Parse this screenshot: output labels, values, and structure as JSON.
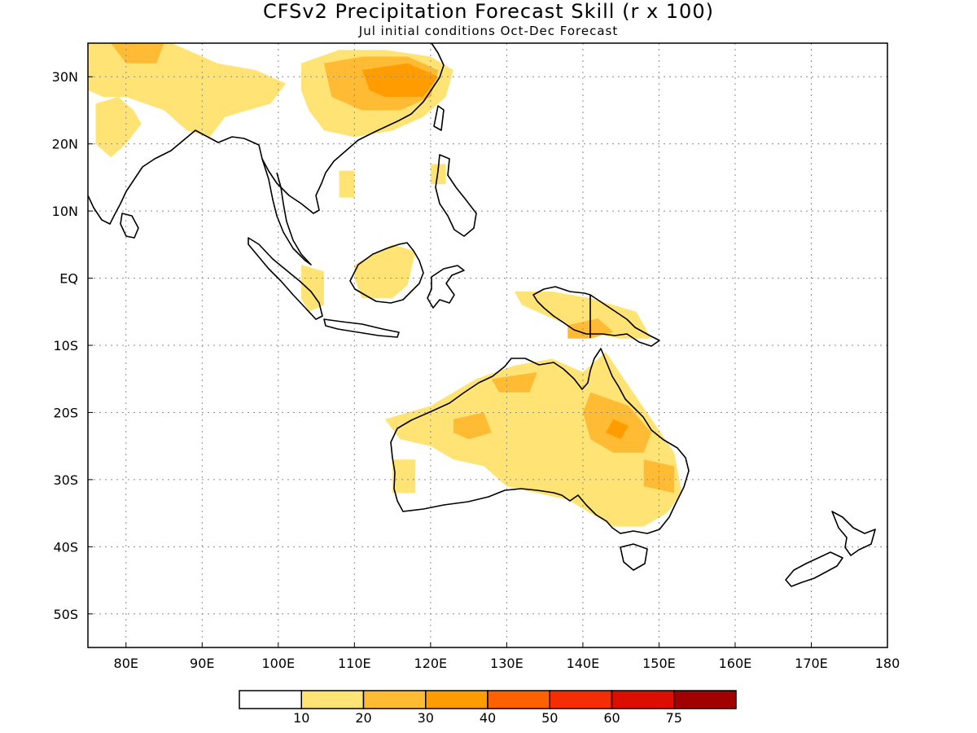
{
  "title": "CFSv2 Precipitation Forecast Skill (r x 100)",
  "subtitle": "Jul initial conditions  Oct-Dec Forecast",
  "map": {
    "lon_range": [
      75,
      180
    ],
    "lat_range": [
      -55,
      35
    ],
    "grid_visible": true
  },
  "axes": {
    "x_ticks": [
      {
        "value": 80,
        "label": "80E"
      },
      {
        "value": 90,
        "label": "90E"
      },
      {
        "value": 100,
        "label": "100E"
      },
      {
        "value": 110,
        "label": "110E"
      },
      {
        "value": 120,
        "label": "120E"
      },
      {
        "value": 130,
        "label": "130E"
      },
      {
        "value": 140,
        "label": "140E"
      },
      {
        "value": 150,
        "label": "150E"
      },
      {
        "value": 160,
        "label": "160E"
      },
      {
        "value": 170,
        "label": "170E"
      },
      {
        "value": 180,
        "label": "180"
      }
    ],
    "y_ticks": [
      {
        "value": 30,
        "label": "30N"
      },
      {
        "value": 20,
        "label": "20N"
      },
      {
        "value": 10,
        "label": "10N"
      },
      {
        "value": 0,
        "label": "EQ"
      },
      {
        "value": -10,
        "label": "10S"
      },
      {
        "value": -20,
        "label": "20S"
      },
      {
        "value": -30,
        "label": "30S"
      },
      {
        "value": -40,
        "label": "40S"
      },
      {
        "value": -50,
        "label": "50S"
      }
    ]
  },
  "colorbar": {
    "colors": [
      "#ffffff",
      "#ffe375",
      "#ffbb33",
      "#ff9d00",
      "#ff6000",
      "#f52d05",
      "#dc0e00",
      "#a00000"
    ],
    "labels": [
      "10",
      "20",
      "30",
      "40",
      "50",
      "60",
      "75"
    ]
  },
  "chart_data": {
    "type": "heatmap",
    "title": "CFSv2 Precipitation Forecast Skill (r x 100)",
    "subtitle": "Jul initial conditions  Oct-Dec Forecast",
    "xlabel": "",
    "ylabel": "",
    "xlim": [
      75,
      180
    ],
    "ylim": [
      -55,
      35
    ],
    "levels": [
      10,
      20,
      30,
      40,
      50,
      60,
      75
    ],
    "regions": [
      {
        "level": 1,
        "points": [
          [
            75,
            35
          ],
          [
            86,
            35
          ],
          [
            92,
            32
          ],
          [
            97,
            31
          ],
          [
            101,
            29
          ],
          [
            99,
            26
          ],
          [
            96,
            25
          ],
          [
            93,
            24
          ],
          [
            91,
            21
          ],
          [
            88,
            22
          ],
          [
            85,
            25
          ],
          [
            80,
            27
          ],
          [
            77,
            27
          ],
          [
            75,
            28
          ]
        ]
      },
      {
        "level": 1,
        "points": [
          [
            76,
            26
          ],
          [
            79,
            27
          ],
          [
            81,
            25
          ],
          [
            82,
            23
          ],
          [
            80,
            20
          ],
          [
            78,
            18
          ],
          [
            76,
            20
          ]
        ]
      },
      {
        "level": 1,
        "points": [
          [
            103,
            32
          ],
          [
            108,
            34
          ],
          [
            114,
            34
          ],
          [
            120,
            33
          ],
          [
            123,
            31
          ],
          [
            122,
            27
          ],
          [
            119,
            24
          ],
          [
            115,
            22
          ],
          [
            110,
            21
          ],
          [
            106,
            22
          ],
          [
            104,
            25
          ],
          [
            103,
            28
          ]
        ]
      },
      {
        "level": 2,
        "points": [
          [
            106,
            32
          ],
          [
            111,
            33
          ],
          [
            117,
            33
          ],
          [
            121,
            31
          ],
          [
            120,
            27
          ],
          [
            116,
            25
          ],
          [
            111,
            25
          ],
          [
            107,
            27
          ]
        ]
      },
      {
        "level": 3,
        "points": [
          [
            111,
            31
          ],
          [
            117,
            32
          ],
          [
            121,
            30
          ],
          [
            119,
            27
          ],
          [
            114,
            27
          ],
          [
            112,
            28
          ]
        ]
      },
      {
        "level": 2,
        "points": [
          [
            78,
            35
          ],
          [
            85,
            35
          ],
          [
            84,
            32
          ],
          [
            80,
            32
          ]
        ]
      },
      {
        "level": 1,
        "points": [
          [
            108,
            16
          ],
          [
            110,
            16
          ],
          [
            110,
            12
          ],
          [
            108,
            12
          ]
        ]
      },
      {
        "level": 1,
        "points": [
          [
            120,
            17
          ],
          [
            122,
            17
          ],
          [
            122,
            14
          ],
          [
            120,
            14
          ]
        ]
      },
      {
        "level": 1,
        "points": [
          [
            103,
            2
          ],
          [
            106,
            1
          ],
          [
            106,
            -4
          ],
          [
            104,
            -5
          ],
          [
            103,
            -3
          ]
        ]
      },
      {
        "level": 1,
        "points": [
          [
            110,
            2
          ],
          [
            115,
            5
          ],
          [
            118,
            4
          ],
          [
            117,
            -1
          ],
          [
            115,
            -3
          ],
          [
            111,
            -3
          ],
          [
            110,
            0
          ]
        ]
      },
      {
        "level": 1,
        "points": [
          [
            131,
            -2
          ],
          [
            136,
            -2
          ],
          [
            141,
            -3
          ],
          [
            147,
            -5
          ],
          [
            149,
            -9
          ],
          [
            145,
            -9
          ],
          [
            140,
            -8
          ],
          [
            136,
            -6
          ],
          [
            132,
            -4
          ]
        ]
      },
      {
        "level": 2,
        "points": [
          [
            138,
            -7
          ],
          [
            142,
            -6
          ],
          [
            144,
            -8
          ],
          [
            141,
            -9
          ],
          [
            138,
            -9
          ]
        ]
      },
      {
        "level": 1,
        "points": [
          [
            114,
            -21
          ],
          [
            120,
            -19
          ],
          [
            126,
            -15
          ],
          [
            131,
            -13
          ],
          [
            136,
            -12
          ],
          [
            140,
            -14
          ],
          [
            143,
            -11
          ],
          [
            146,
            -16
          ],
          [
            149,
            -21
          ],
          [
            152,
            -26
          ],
          [
            153,
            -32
          ],
          [
            151,
            -35
          ],
          [
            148,
            -37
          ],
          [
            144,
            -37
          ],
          [
            141,
            -35
          ],
          [
            138,
            -33
          ],
          [
            134,
            -32
          ],
          [
            130,
            -31
          ],
          [
            127,
            -28
          ],
          [
            123,
            -27
          ],
          [
            120,
            -25
          ],
          [
            116,
            -24
          ]
        ]
      },
      {
        "level": 2,
        "points": [
          [
            141,
            -17
          ],
          [
            146,
            -19
          ],
          [
            149,
            -23
          ],
          [
            148,
            -26
          ],
          [
            144,
            -26
          ],
          [
            141,
            -24
          ],
          [
            140,
            -20
          ]
        ]
      },
      {
        "level": 2,
        "points": [
          [
            148,
            -27
          ],
          [
            152,
            -28
          ],
          [
            152,
            -32
          ],
          [
            148,
            -31
          ]
        ]
      },
      {
        "level": 2,
        "points": [
          [
            123,
            -21
          ],
          [
            127,
            -20
          ],
          [
            128,
            -23
          ],
          [
            125,
            -24
          ],
          [
            123,
            -23
          ]
        ]
      },
      {
        "level": 2,
        "points": [
          [
            128,
            -15
          ],
          [
            134,
            -14
          ],
          [
            133,
            -17
          ],
          [
            129,
            -17
          ]
        ]
      },
      {
        "level": 3,
        "points": [
          [
            144,
            -21
          ],
          [
            146,
            -22
          ],
          [
            145,
            -24
          ],
          [
            143,
            -23
          ]
        ]
      },
      {
        "level": 1,
        "points": [
          [
            115,
            -27
          ],
          [
            118,
            -27
          ],
          [
            118,
            -32
          ],
          [
            115,
            -32
          ]
        ]
      }
    ]
  }
}
